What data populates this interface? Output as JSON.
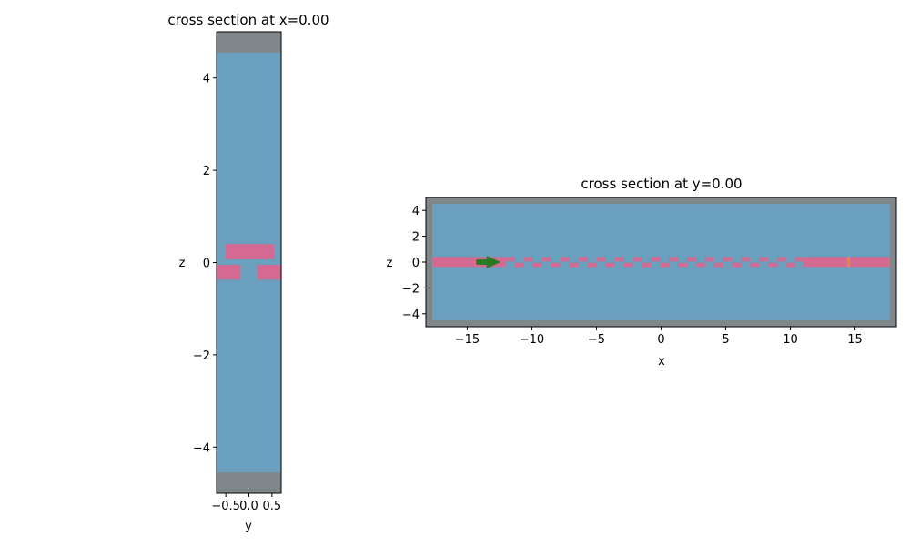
{
  "colors": {
    "background_region": "#6a9fbd",
    "pml_region": "#7f878b",
    "waveguide": "#d46a92",
    "source_arrow": "#2a7a22",
    "monitor": "#e08a3a",
    "frame": "#000000"
  },
  "chart_data": [
    {
      "type": "cross-section",
      "title": "cross section at x=0.00",
      "xlabel": "y",
      "ylabel": "z",
      "xlim": [
        -0.7,
        0.7
      ],
      "ylim": [
        -5,
        5
      ],
      "xticks": [
        -0.5,
        0.0,
        0.5
      ],
      "xtick_labels": [
        "−0.5",
        "0.0",
        "0.5"
      ],
      "yticks": [
        -4,
        -2,
        0,
        2,
        4
      ],
      "ytick_labels": [
        "−4",
        "−2",
        "0",
        "2",
        "4"
      ],
      "pml_bands_z": [
        [
          -5,
          -4.55
        ],
        [
          4.55,
          5
        ]
      ],
      "structures": [
        {
          "name": "upper-waveguide",
          "y": [
            -0.5,
            0.55
          ],
          "z": [
            0.07,
            0.4
          ]
        },
        {
          "name": "lower-waveguide-left",
          "y": [
            -0.7,
            -0.18
          ],
          "z": [
            -0.37,
            -0.05
          ]
        },
        {
          "name": "lower-waveguide-right",
          "y": [
            0.18,
            0.7
          ],
          "z": [
            -0.37,
            -0.05
          ]
        }
      ]
    },
    {
      "type": "cross-section",
      "title": "cross section at y=0.00",
      "xlabel": "x",
      "ylabel": "z",
      "xlim": [
        -18.2,
        18.2
      ],
      "ylim": [
        -5,
        5
      ],
      "xticks": [
        -15,
        -10,
        -5,
        0,
        5,
        10,
        15
      ],
      "xtick_labels": [
        "−15",
        "−10",
        "−5",
        "0",
        "5",
        "10",
        "15"
      ],
      "yticks": [
        -4,
        -2,
        0,
        2,
        4
      ],
      "ytick_labels": [
        "−4",
        "−2",
        "0",
        "2",
        "4"
      ],
      "pml_frame_inner_x": [
        -17.7,
        17.7
      ],
      "pml_frame_inner_z": [
        -4.5,
        4.5
      ],
      "waveguide_left_x": [
        -17.7,
        -12.0
      ],
      "waveguide_right_x": [
        11.0,
        17.7
      ],
      "waveguide_z": [
        -0.37,
        0.4
      ],
      "grating_x_range": [
        -12.0,
        11.0
      ],
      "grating_period": 1.4,
      "grating_tooth_height": [
        0.05,
        0.4
      ],
      "grating_tooth_depth": [
        -0.37,
        -0.05
      ],
      "source_arrow_x": [
        -14.3,
        -12.7
      ],
      "monitor_x": 14.5
    }
  ]
}
